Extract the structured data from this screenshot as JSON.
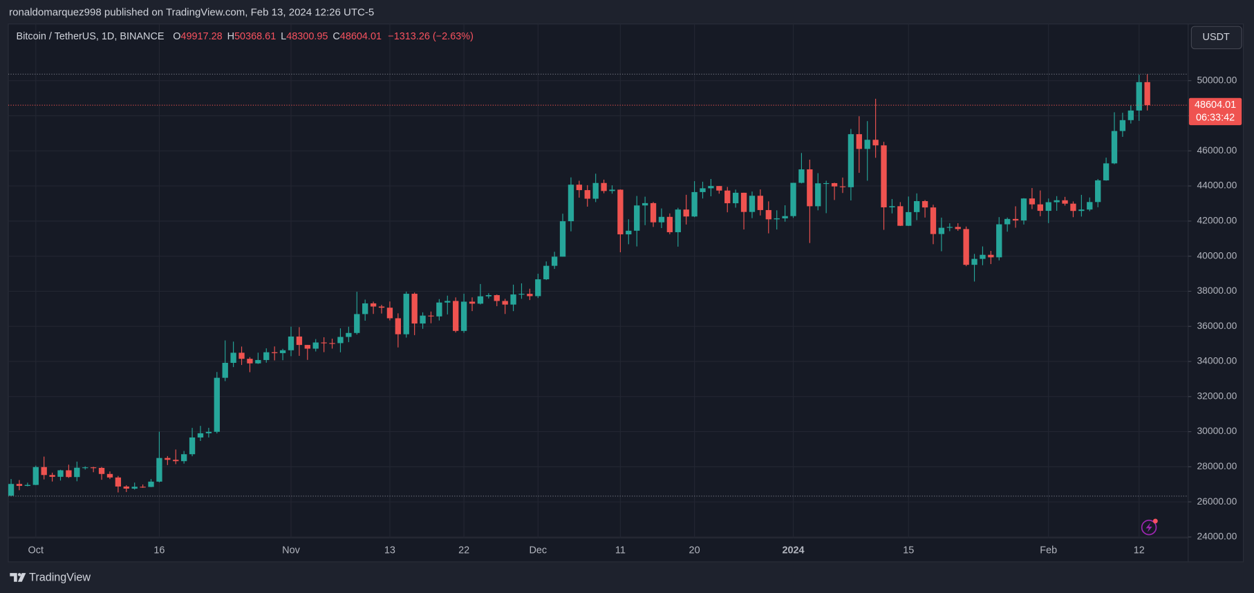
{
  "header": {
    "publisher": "ronaldomarquez998 published on TradingView.com, Feb 13, 2024 12:26 UTC-5",
    "currency_button": "USDT",
    "brand": "TradingView"
  },
  "chart_data": {
    "type": "candlestick",
    "title": "Bitcoin / TetherUS, 1D, BINANCE",
    "ohlc_letters": [
      "O",
      "H",
      "L",
      "C"
    ],
    "change_label": "−1313.26 (−2.63%)",
    "countdown": "06:33:42",
    "up_color": "#26a69a",
    "down_color": "#ef5350",
    "grid": true,
    "ylim": [
      23950,
      53230
    ],
    "yticks": [
      {
        "value": 24000,
        "label": "24000.00"
      },
      {
        "value": 26000,
        "label": "26000.00"
      },
      {
        "value": 28000,
        "label": "28000.00"
      },
      {
        "value": 30000,
        "label": "30000.00"
      },
      {
        "value": 32000,
        "label": "32000.00"
      },
      {
        "value": 34000,
        "label": "34000.00"
      },
      {
        "value": 36000,
        "label": "36000.00"
      },
      {
        "value": 38000,
        "label": "38000.00"
      },
      {
        "value": 40000,
        "label": "40000.00"
      },
      {
        "value": 42000,
        "label": "42000.00"
      },
      {
        "value": 44000,
        "label": "44000.00"
      },
      {
        "value": 46000,
        "label": "46000.00"
      },
      {
        "value": 48000,
        "label": "48000.00"
      },
      {
        "value": 50000,
        "label": "50000.00"
      }
    ],
    "categories": [
      null,
      null,
      null,
      "Oct",
      null,
      null,
      null,
      null,
      null,
      null,
      null,
      null,
      null,
      null,
      null,
      null,
      null,
      null,
      "16",
      null,
      null,
      null,
      null,
      null,
      null,
      null,
      null,
      null,
      null,
      null,
      null,
      null,
      null,
      null,
      "Nov",
      null,
      null,
      null,
      null,
      null,
      null,
      null,
      null,
      null,
      null,
      null,
      "13",
      null,
      null,
      null,
      null,
      null,
      null,
      null,
      null,
      "22",
      null,
      null,
      null,
      null,
      null,
      null,
      null,
      null,
      "Dec",
      null,
      null,
      null,
      null,
      null,
      null,
      null,
      null,
      null,
      "11",
      null,
      null,
      null,
      null,
      null,
      null,
      null,
      null,
      "20",
      null,
      null,
      null,
      null,
      null,
      null,
      null,
      null,
      null,
      null,
      null,
      "2024",
      null,
      null,
      null,
      null,
      null,
      null,
      null,
      null,
      null,
      null,
      null,
      null,
      null,
      "15",
      null,
      null,
      null,
      null,
      null,
      null,
      null,
      null,
      null,
      null,
      null,
      null,
      null,
      null,
      null,
      null,
      "Feb",
      null,
      null,
      null,
      null,
      null,
      null,
      null,
      null,
      null,
      null,
      "12",
      null
    ],
    "open": [
      26352,
      27021,
      26911,
      26967,
      27983,
      27530,
      27429,
      27799,
      27415,
      27946,
      27968,
      27936,
      27590,
      27390,
      26875,
      26756,
      26862,
      26852,
      27154,
      28500,
      28397,
      28320,
      28715,
      29670,
      29909,
      29992,
      33070,
      33922,
      34497,
      34152,
      33892,
      34082,
      34525,
      34475,
      34639,
      35421,
      34941,
      34730,
      35082,
      35048,
      35046,
      35399,
      35624,
      36701,
      37310,
      37130,
      37064,
      36462,
      35551,
      37858,
      36163,
      36613,
      36568,
      37359,
      37448,
      35741,
      37408,
      37294,
      37713,
      37780,
      37447,
      37242,
      37818,
      37854,
      37723,
      38682,
      39450,
      39972,
      41991,
      44073,
      43763,
      43274,
      44170,
      43713,
      43789,
      41243,
      41450,
      42890,
      43023,
      41929,
      42240,
      41365,
      42657,
      42261,
      43652,
      43869,
      43997,
      43739,
      43016,
      43613,
      42520,
      43442,
      42627,
      42099,
      42156,
      42283,
      44179,
      44946,
      42845,
      44151,
      44162,
      43974,
      43929,
      46951,
      46110,
      46632,
      46314,
      42782,
      42847,
      41732,
      42511,
      43137,
      42776,
      41262,
      41618,
      41665,
      41545,
      39507,
      39845,
      40077,
      39934,
      41816,
      42120,
      42035,
      43288,
      42952,
      42582,
      43075,
      43185,
      42992,
      42577,
      42658,
      43084,
      44319,
      45288,
      47132,
      47751,
      48299,
      49917.28
    ],
    "high": [
      27300,
      27244,
      27094,
      28065,
      28580,
      27665,
      27830,
      28120,
      28295,
      28029,
      28000,
      27990,
      27735,
      27478,
      26948,
      27100,
      26990,
      27300,
      30000,
      28610,
      28985,
      28900,
      30215,
      30330,
      30220,
      33400,
      35200,
      35132,
      34850,
      34245,
      34500,
      34750,
      34856,
      34720,
      35984,
      35955,
      34941,
      35275,
      35380,
      35299,
      35888,
      35980,
      37972,
      37526,
      37408,
      37228,
      37420,
      36744,
      37980,
      37929,
      36800,
      36845,
      37555,
      37750,
      37650,
      37861,
      37653,
      38414,
      37888,
      37814,
      37569,
      38377,
      38450,
      38145,
      38999,
      39700,
      40250,
      42420,
      44488,
      44297,
      44047,
      44700,
      44360,
      44038,
      43804,
      42104,
      43431,
      43390,
      43087,
      42720,
      42435,
      42756,
      43497,
      44275,
      44242,
      44398,
      44000,
      43946,
      43794,
      43617,
      43683,
      43804,
      43124,
      42612,
      42899,
      44184,
      45879,
      45500,
      44729,
      44300,
      44187,
      44480,
      47248,
      47972,
      47695,
      48969,
      46515,
      43257,
      43079,
      43400,
      43578,
      43198,
      42930,
      42196,
      41875,
      41877,
      41689,
      40129,
      40555,
      40300,
      42225,
      42200,
      42842,
      43305,
      43882,
      43745,
      43285,
      43422,
      43380,
      43119,
      43494,
      43344,
      44396,
      45614,
      48200,
      48170,
      48592,
      50334,
      50368.61
    ],
    "low": [
      26330,
      26665,
      26886,
      26954,
      27280,
      27160,
      27215,
      27367,
      27175,
      27840,
      27690,
      27260,
      27300,
      26538,
      26560,
      26700,
      26800,
      26840,
      27110,
      28100,
      28150,
      28180,
      28600,
      29470,
      29670,
      29900,
      32880,
      33680,
      33800,
      33390,
      33860,
      33930,
      34060,
      34071,
      34300,
      34320,
      34090,
      34570,
      34531,
      34733,
      34523,
      35100,
      35534,
      36324,
      36709,
      36731,
      36341,
      34800,
      35360,
      35500,
      35861,
      36178,
      36336,
      36680,
      35650,
      35632,
      36870,
      37251,
      37591,
      37150,
      36707,
      36868,
      37570,
      37500,
      37615,
      38641,
      39274,
      39972,
      41415,
      43335,
      42821,
      43081,
      43584,
      43563,
      40222,
      40680,
      40555,
      41767,
      41666,
      41600,
      41250,
      40542,
      41804,
      42223,
      43286,
      43412,
      43560,
      42500,
      42765,
      41520,
      42167,
      42318,
      41300,
      41520,
      41965,
      42180,
      44148,
      40750,
      42613,
      42450,
      43200,
      43600,
      43175,
      44748,
      44300,
      45606,
      41500,
      42436,
      41720,
      41718,
      42050,
      42200,
      40683,
      40280,
      41423,
      41446,
      39431,
      38555,
      39484,
      39550,
      39760,
      41395,
      41620,
      41804,
      42683,
      42276,
      41884,
      42584,
      42880,
      42222,
      42258,
      42565,
      42788,
      44300,
      45242,
      46800,
      47557,
      47710,
      48300.95
    ],
    "close": [
      27021,
      26911,
      26967,
      27983,
      27530,
      27429,
      27799,
      27415,
      27946,
      27968,
      27936,
      27590,
      27390,
      26875,
      26756,
      26862,
      26852,
      27154,
      28500,
      28397,
      28320,
      28715,
      29670,
      29909,
      29992,
      33070,
      33922,
      34497,
      34152,
      33892,
      34082,
      34525,
      34475,
      34639,
      35421,
      34941,
      34730,
      35082,
      35048,
      35046,
      35399,
      35624,
      36701,
      37310,
      37130,
      37064,
      36462,
      35551,
      37858,
      36163,
      36613,
      36568,
      37359,
      37448,
      35741,
      37408,
      37294,
      37713,
      37780,
      37447,
      37242,
      37818,
      37854,
      37723,
      38682,
      39450,
      39972,
      41991,
      44073,
      43763,
      43274,
      44170,
      43713,
      43789,
      41243,
      41450,
      42890,
      43023,
      41929,
      42240,
      41365,
      42657,
      42261,
      43652,
      43869,
      43997,
      43739,
      43016,
      43613,
      42520,
      43442,
      42627,
      42099,
      42156,
      42283,
      44179,
      44946,
      42845,
      44151,
      44162,
      43974,
      43929,
      46951,
      46110,
      46632,
      46314,
      42782,
      42847,
      41732,
      42511,
      43137,
      42776,
      41262,
      41618,
      41665,
      41545,
      39507,
      39845,
      40077,
      39934,
      41816,
      42120,
      42035,
      43288,
      42952,
      42582,
      43075,
      43185,
      42992,
      42577,
      42658,
      43084,
      44319,
      45288,
      47132,
      47751,
      48299,
      49917.28,
      48604.01
    ]
  }
}
